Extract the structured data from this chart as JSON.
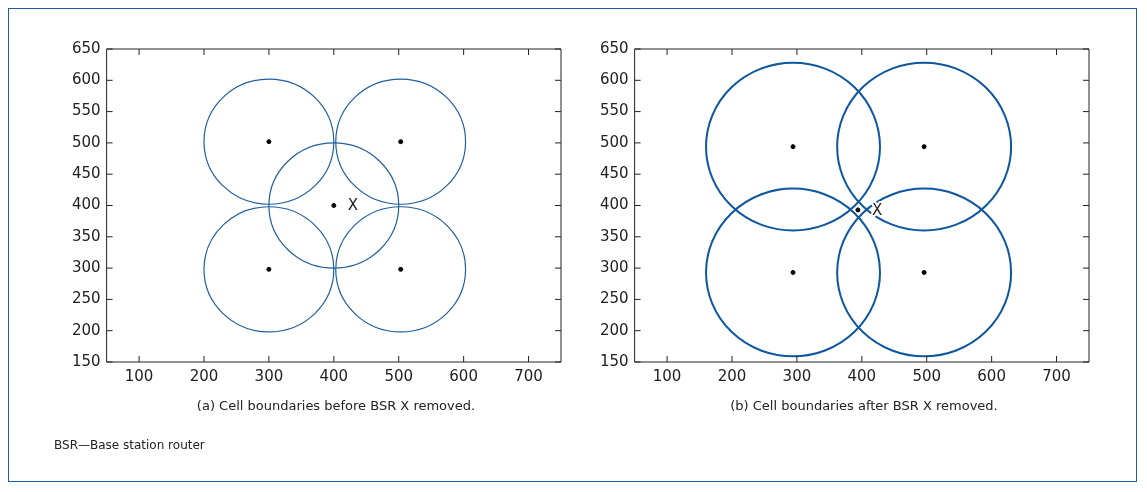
{
  "chart_data": [
    {
      "type": "scatter",
      "title": "(a) Cell boundaries before BSR X removed.",
      "xlim": [
        50,
        750
      ],
      "ylim": [
        150,
        650
      ],
      "xticks": [
        100,
        200,
        300,
        400,
        500,
        600,
        700
      ],
      "yticks": [
        150,
        200,
        250,
        300,
        350,
        400,
        450,
        500,
        550,
        600,
        650
      ],
      "annotations": [
        {
          "text": "X",
          "x": 400,
          "y": 400
        },
        "BSR—Base station router"
      ],
      "series": [
        {
          "color": "#000000",
          "x": [
            300,
            503,
            400,
            300,
            503
          ],
          "values": [
            502,
            502,
            400,
            298,
            298
          ]
        }
      ]
    },
    {
      "type": "scatter",
      "title": "(b) Cell boundaries after BSR X removed.",
      "xlim": [
        50,
        750
      ],
      "ylim": [
        150,
        650
      ],
      "xticks": [
        100,
        200,
        300,
        400,
        500,
        600,
        700
      ],
      "yticks": [
        150,
        200,
        250,
        300,
        350,
        400,
        450,
        500,
        550,
        600,
        650
      ],
      "annotations": [
        {
          "text": "X",
          "x": 394,
          "y": 393
        }
      ],
      "series": [
        {
          "color": "#000000",
          "x": [
            294,
            496,
            294,
            496,
            394
          ],
          "values": [
            494,
            494,
            293,
            293,
            393
          ]
        }
      ]
    }
  ]
}
